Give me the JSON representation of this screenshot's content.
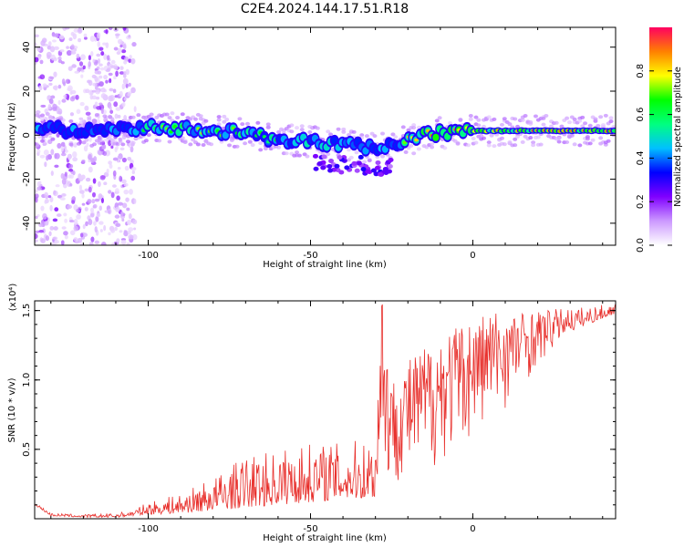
{
  "title": "C2E4.2024.144.17.51.R18",
  "chart_data": [
    {
      "type": "heatmap",
      "xlabel": "Height of straight line (km)",
      "ylabel": "Frequency (Hz)",
      "xlim": [
        -135,
        44
      ],
      "ylim": [
        -50,
        49
      ],
      "xticks": [
        -100,
        -50,
        0
      ],
      "yticks": [
        -40,
        -20,
        0,
        20,
        40
      ],
      "colorbar": {
        "label": "Normalized spectral amplitude",
        "range": [
          0.0,
          1.0
        ],
        "ticks": [
          0.0,
          0.2,
          0.4,
          0.6,
          0.8
        ],
        "tick_labels": [
          "0.0",
          "0.2",
          "0.4",
          "0.6",
          "0.8"
        ],
        "colormap": [
          "#ffffff",
          "#cc99ff",
          "#8000ff",
          "#0000ff",
          "#00c0ff",
          "#00ff80",
          "#00ff00",
          "#ffff00",
          "#ff8000",
          "#ff0060"
        ]
      },
      "ridge": {
        "x": [
          -135,
          -120,
          -105,
          -100,
          -90,
          -80,
          -70,
          -60,
          -50,
          -40,
          -35,
          -30,
          -25,
          -20,
          -15,
          -10,
          -5,
          0,
          10,
          20,
          30,
          44
        ],
        "freq": [
          3,
          2,
          3,
          4,
          3,
          2,
          1,
          -2,
          -3,
          -4,
          -5,
          -6,
          -4,
          -2,
          0,
          1,
          1,
          2,
          2,
          2,
          2,
          2
        ],
        "amplitude": [
          0.5,
          0.5,
          0.55,
          0.65,
          0.7,
          0.7,
          0.65,
          0.6,
          0.6,
          0.6,
          0.55,
          0.5,
          0.55,
          0.75,
          0.85,
          0.9,
          0.85,
          0.8,
          0.85,
          0.9,
          0.9,
          0.9
        ]
      }
    },
    {
      "type": "line",
      "xlabel": "Height of straight line (km)",
      "ylabel": "SNR (10 * v/v)",
      "ymultiplier": "(x10⁴)",
      "xlim": [
        -135,
        44
      ],
      "ylim": [
        0.0,
        1.57
      ],
      "xticks": [
        -100,
        -50,
        0
      ],
      "yticks": [
        0.5,
        1.0,
        1.5
      ],
      "ytick_labels": [
        "0.5",
        "1.0",
        "1.5"
      ],
      "series": [
        {
          "color": "#e8302c",
          "envelope_x": [
            -135,
            -130,
            -120,
            -110,
            -105,
            -100,
            -90,
            -80,
            -70,
            -60,
            -50,
            -40,
            -30,
            -28,
            -25,
            -20,
            -15,
            -10,
            -5,
            0,
            5,
            10,
            15,
            20,
            30,
            44
          ],
          "envelope_low": [
            0.1,
            0.02,
            0.01,
            0.01,
            0.02,
            0.03,
            0.04,
            0.06,
            0.08,
            0.1,
            0.12,
            0.14,
            0.15,
            0.2,
            0.25,
            0.3,
            0.32,
            0.4,
            0.5,
            0.6,
            0.7,
            0.8,
            0.95,
            1.1,
            1.35,
            1.48
          ],
          "envelope_high": [
            0.12,
            0.04,
            0.03,
            0.04,
            0.06,
            0.12,
            0.18,
            0.3,
            0.45,
            0.5,
            0.55,
            0.55,
            0.6,
            1.57,
            1.0,
            1.15,
            1.25,
            1.35,
            1.4,
            1.45,
            1.52,
            1.5,
            1.5,
            1.5,
            1.52,
            1.55
          ]
        }
      ]
    }
  ]
}
